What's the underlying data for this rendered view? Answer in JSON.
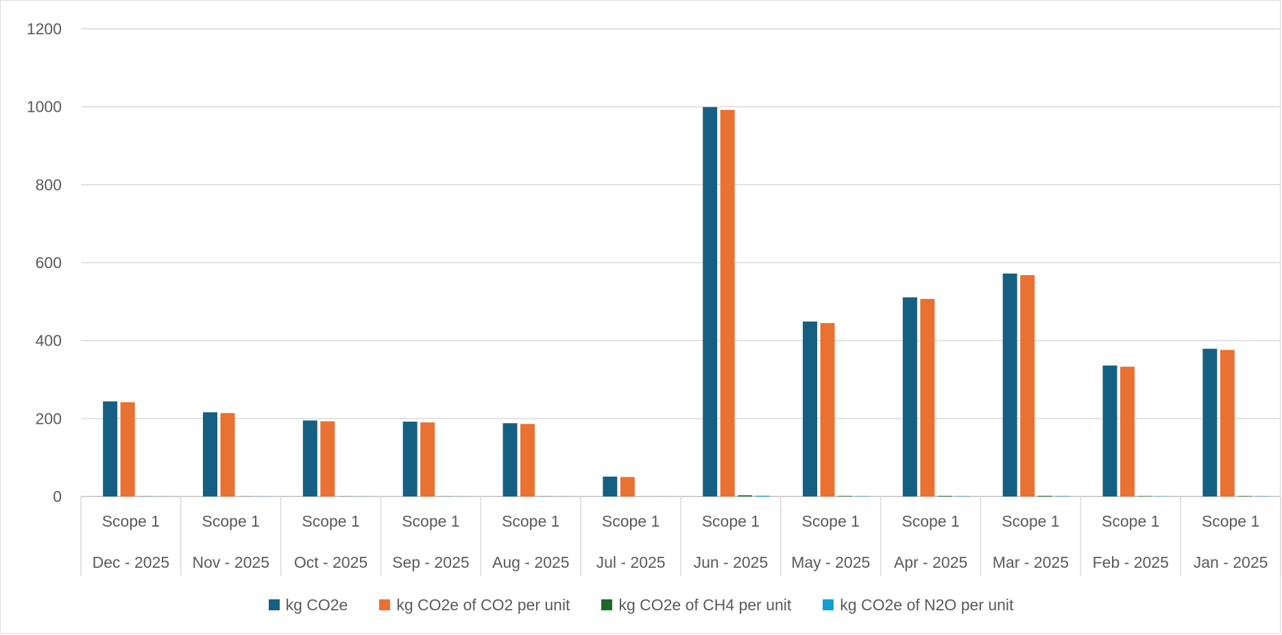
{
  "chart_data": {
    "type": "bar",
    "ylim": [
      0,
      1200
    ],
    "yticks": [
      0,
      200,
      400,
      600,
      800,
      1000,
      1200
    ],
    "grid": true,
    "legend_position": "bottom",
    "categories": [
      {
        "scope": "Scope 1",
        "month": "Dec - 2025"
      },
      {
        "scope": "Scope 1",
        "month": "Nov - 2025"
      },
      {
        "scope": "Scope 1",
        "month": "Oct - 2025"
      },
      {
        "scope": "Scope 1",
        "month": "Sep - 2025"
      },
      {
        "scope": "Scope 1",
        "month": "Aug - 2025"
      },
      {
        "scope": "Scope 1",
        "month": "Jul - 2025"
      },
      {
        "scope": "Scope 1",
        "month": "Jun - 2025"
      },
      {
        "scope": "Scope 1",
        "month": "May - 2025"
      },
      {
        "scope": "Scope 1",
        "month": "Apr - 2025"
      },
      {
        "scope": "Scope 1",
        "month": "Mar - 2025"
      },
      {
        "scope": "Scope 1",
        "month": "Feb - 2025"
      },
      {
        "scope": "Scope 1",
        "month": "Jan - 2025"
      }
    ],
    "series": [
      {
        "name": "kg CO2e",
        "color": "#156082",
        "values": [
          244,
          216,
          195,
          192,
          188,
          51,
          999,
          449,
          511,
          572,
          336,
          379
        ]
      },
      {
        "name": "kg CO2e of CO2 per unit",
        "color": "#E97132",
        "values": [
          242,
          214,
          193,
          190,
          186,
          50,
          992,
          445,
          507,
          568,
          333,
          376
        ]
      },
      {
        "name": "kg CO2e of CH4 per unit",
        "color": "#196B24",
        "values": [
          0.5,
          0.4,
          0.4,
          0.4,
          0.4,
          0.1,
          3,
          1.3,
          1.5,
          1.7,
          1.0,
          1.1
        ]
      },
      {
        "name": "kg CO2e of N2O per unit",
        "color": "#0F9ED5",
        "values": [
          0.3,
          0.3,
          0.3,
          0.3,
          0.3,
          0.1,
          2,
          0.9,
          1.0,
          1.1,
          0.7,
          0.8
        ]
      }
    ]
  }
}
